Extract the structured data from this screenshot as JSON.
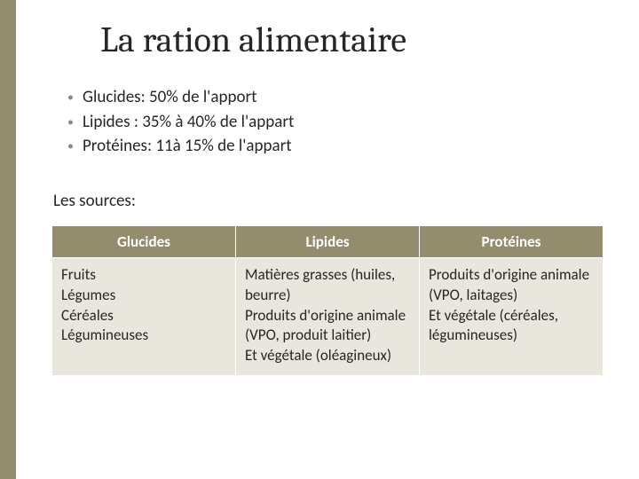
{
  "colors": {
    "accent": "#938c6d",
    "header_bg": "#938c6d",
    "header_text": "#ffffff",
    "cell_bg": "#e9e7dd",
    "text": "#262626",
    "background": "#ffffff"
  },
  "typography": {
    "title_font": "Cambria, Georgia, serif",
    "body_font": "Calibri, Segoe UI, sans-serif",
    "title_size_pt": 30,
    "body_size_pt": 14
  },
  "title": "La ration alimentaire",
  "bullets": [
    "Glucides: 50% de l'apport",
    "Lipides : 35% à 40% de l'appart",
    "Protéines: 11à 15% de l'appart"
  ],
  "subheading": "Les sources:",
  "table": {
    "columns": [
      "Glucides",
      "Lipides",
      "Protéines"
    ],
    "rows": [
      [
        "Fruits\nLégumes\nCéréales\nLégumineuses",
        "Matières grasses (huiles, beurre)\nProduits d'origine animale (VPO, produit laitier)\nEt végétale (oléagineux)",
        "Produits d'origine animale (VPO, laitages)\nEt végétale (céréales, légumineuses)"
      ]
    ],
    "column_widths_pct": [
      33.3,
      33.3,
      33.3
    ],
    "header_bg": "#938c6d",
    "header_text_color": "#ffffff",
    "cell_bg": "#e9e7dd",
    "border_color": "#ffffff"
  }
}
